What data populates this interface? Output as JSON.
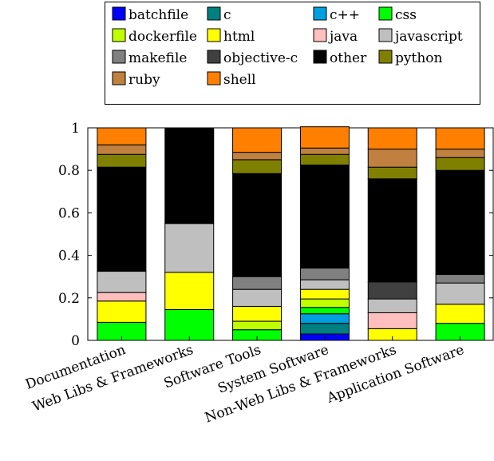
{
  "chart_data": {
    "type": "bar",
    "stacked": true,
    "legend_position": "top",
    "grid": false,
    "ylim": [
      0,
      1
    ],
    "yticks": [
      "0",
      "0.2",
      "0.4",
      "0.6",
      "0.8",
      "1"
    ],
    "categories": [
      "Documentation",
      "Web Libs & Frameworks",
      "Software Tools",
      "System Software",
      "Non-Web Libs & Frameworks",
      "Application Software"
    ],
    "series": [
      {
        "name": "batchfile",
        "color": "#0000ff",
        "values": [
          0,
          0,
          0,
          0.03,
          0,
          0
        ]
      },
      {
        "name": "c",
        "color": "#008080",
        "values": [
          0,
          0,
          0,
          0.05,
          0,
          0
        ]
      },
      {
        "name": "c++",
        "color": "#00a0e0",
        "values": [
          0,
          0,
          0,
          0.045,
          0,
          0
        ]
      },
      {
        "name": "css",
        "color": "#00ff00",
        "values": [
          0.085,
          0.145,
          0.05,
          0.03,
          0,
          0.08
        ]
      },
      {
        "name": "dockerfile",
        "color": "#bfff00",
        "values": [
          0,
          0,
          0.04,
          0.04,
          0,
          0
        ]
      },
      {
        "name": "html",
        "color": "#ffff00",
        "values": [
          0.1,
          0.175,
          0.07,
          0.045,
          0.055,
          0.09
        ]
      },
      {
        "name": "java",
        "color": "#ffbfbf",
        "values": [
          0.04,
          0,
          0,
          0,
          0.075,
          0
        ]
      },
      {
        "name": "javascript",
        "color": "#bfbfbf",
        "values": [
          0.1,
          0.23,
          0.08,
          0.045,
          0.065,
          0.1
        ]
      },
      {
        "name": "makefile",
        "color": "#808080",
        "values": [
          0,
          0,
          0.06,
          0.055,
          0,
          0.04
        ]
      },
      {
        "name": "objective-c",
        "color": "#404040",
        "values": [
          0,
          0,
          0,
          0,
          0.08,
          0
        ]
      },
      {
        "name": "other",
        "color": "#000000",
        "values": [
          0.49,
          0.45,
          0.485,
          0.485,
          0.485,
          0.49
        ]
      },
      {
        "name": "python",
        "color": "#808000",
        "values": [
          0.06,
          0,
          0.065,
          0.05,
          0.055,
          0.06
        ]
      },
      {
        "name": "ruby",
        "color": "#bf8040",
        "values": [
          0.045,
          0,
          0.035,
          0.03,
          0.085,
          0.04
        ]
      },
      {
        "name": "shell",
        "color": "#ff8000",
        "values": [
          0.08,
          0,
          0.115,
          0.1,
          0.1,
          0.1
        ]
      }
    ]
  }
}
